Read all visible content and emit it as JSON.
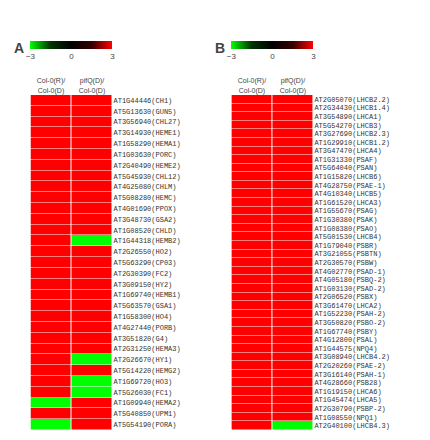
{
  "chart_data": [
    {
      "type": "heatmap",
      "title": "A",
      "categories": [
        "AT1G44446(CH1)",
        "AT5G13630(GUN5)",
        "AT3G56940(CHL27)",
        "AT3G14930(HEME1)",
        "AT1G58290(HEMA1)",
        "AT1G03630(PORC)",
        "AT2G40490(HEME2)",
        "AT5G45930(CHL12)",
        "AT4G25080(CHLM)",
        "AT5G08280(HEMC)",
        "AT4G01690(PPOX)",
        "AT3G48730(GSA2)",
        "AT1G08520(CHLD)",
        "AT1G44318(HEMB2)",
        "AT2G26550(HO2)",
        "AT5G63290(CP03)",
        "AT2G30390(FC2)",
        "AT3G09150(HY2)",
        "AT1G69740(HEMB1)",
        "AT5G63570(GSA1)",
        "AT1G58300(HO4)",
        "AT4G27440(PORB)",
        "AT3G51820(G4)",
        "AT2G31250(HEMA3)",
        "AT2G26670(HY1)",
        "AT5G14220(HEMG2)",
        "AT1G69720(HO3)",
        "AT5G26030(FC1)",
        "AT1G09940(HEMA2)",
        "AT5G40850(UPM1)",
        "AT5G54190(PORA)"
      ],
      "series": [
        {
          "name": "Col-0(R)/Col-0(D)",
          "values": [
            3.0,
            3.0,
            3.0,
            3.0,
            3.0,
            3.0,
            3.0,
            3.0,
            3.0,
            3.0,
            3.0,
            3.0,
            3.0,
            3.0,
            3.0,
            3.0,
            3.0,
            3.0,
            3.0,
            3.0,
            3.0,
            3.0,
            3.0,
            3.0,
            3.0,
            3.0,
            3.0,
            3.0,
            -3.0,
            3.0,
            -3.0
          ]
        },
        {
          "name": "pifQ(D)/Col-0(D)",
          "values": [
            3.0,
            3.0,
            3.0,
            3.0,
            3.0,
            3.0,
            3.0,
            3.0,
            3.0,
            3.0,
            3.0,
            3.0,
            3.0,
            -3.0,
            3.0,
            3.0,
            3.0,
            3.0,
            3.0,
            3.0,
            3.0,
            3.0,
            3.0,
            3.0,
            -3.0,
            3.0,
            -3.0,
            -3.0,
            3.0,
            3.0,
            3.0
          ]
        }
      ],
      "zlim": [
        -3.0,
        3.0
      ],
      "zticks": [
        -3.0,
        0.0,
        3.0
      ],
      "colors": [
        "#00ff00",
        "#003300",
        "#000000",
        "#330000",
        "#ff0000"
      ],
      "grid": false
    },
    {
      "type": "heatmap",
      "title": "B",
      "categories": [
        "AT2G05070(LHCB2.2)",
        "AT2G34430(LHCB1.4)",
        "AT3G54890(LHCA1)",
        "AT5G54270(LHCB3)",
        "AT3G27690(LHCB2.3)",
        "AT1G29910(LHCB1.2)",
        "AT3G47470(LHCA4)",
        "AT1G31330(PSAF)",
        "AT5G64040(PSAN)",
        "AT1G15820(LHCB6)",
        "AT4G28750(PSAE-1)",
        "AT4G10340(LHCB5)",
        "AT1G61520(LHCA3)",
        "AT1G55670(PSAG)",
        "AT1G30380(PSAK)",
        "AT1G08380(PSAO)",
        "AT5G01530(LHCB4)",
        "AT1G79040(PSBR)",
        "AT3G21055(PSBTN)",
        "AT2G30570(PSBW)",
        "AT4G02770(PSAD-1)",
        "AT4G05180(PSBQ-2)",
        "AT1G03130(PSAD-2)",
        "AT2G06520(PSBX)",
        "AT3G61470(LHCA2)",
        "AT1G52230(PSAH-2)",
        "AT3G50820(PSBO-2)",
        "AT1G67740(PSBY)",
        "AT4G12800(PSAL)",
        "AT1G44575(NPQ4)",
        "AT3G08940(LHCB4.2)",
        "AT2G20260(PSAE-2)",
        "AT3G16140(PSAH-1)",
        "AT4G28660(PSB28)",
        "AT1G19150(LHCA6)",
        "AT1G45474(LHCA5)",
        "AT2G30790(PSBP-2)",
        "AT1G08550(NPQ1)",
        "AT2G40100(LHCB4.3)"
      ],
      "series": [
        {
          "name": "Col-0(R)/Col-0(D)",
          "values": [
            3.0,
            3.0,
            3.0,
            3.0,
            3.0,
            3.0,
            3.0,
            3.0,
            3.0,
            3.0,
            3.0,
            3.0,
            3.0,
            3.0,
            3.0,
            3.0,
            3.0,
            3.0,
            3.0,
            3.0,
            3.0,
            3.0,
            3.0,
            3.0,
            3.0,
            3.0,
            3.0,
            3.0,
            3.0,
            3.0,
            3.0,
            3.0,
            3.0,
            3.0,
            3.0,
            3.0,
            3.0,
            3.0,
            3.0
          ]
        },
        {
          "name": "pifQ(D)/Col-0(D)",
          "values": [
            3.0,
            3.0,
            3.0,
            3.0,
            3.0,
            3.0,
            3.0,
            3.0,
            3.0,
            3.0,
            3.0,
            3.0,
            3.0,
            3.0,
            3.0,
            3.0,
            3.0,
            3.0,
            3.0,
            3.0,
            3.0,
            3.0,
            3.0,
            3.0,
            3.0,
            3.0,
            3.0,
            3.0,
            3.0,
            3.0,
            3.0,
            3.0,
            3.0,
            3.0,
            3.0,
            3.0,
            3.0,
            3.0,
            -3.0
          ]
        }
      ],
      "zlim": [
        -3.0,
        3.0
      ],
      "zticks": [
        -3.0,
        0.0,
        3.0
      ],
      "colors": [
        "#00ff00",
        "#003300",
        "#000000",
        "#330000",
        "#ff0000"
      ],
      "grid": false
    }
  ]
}
